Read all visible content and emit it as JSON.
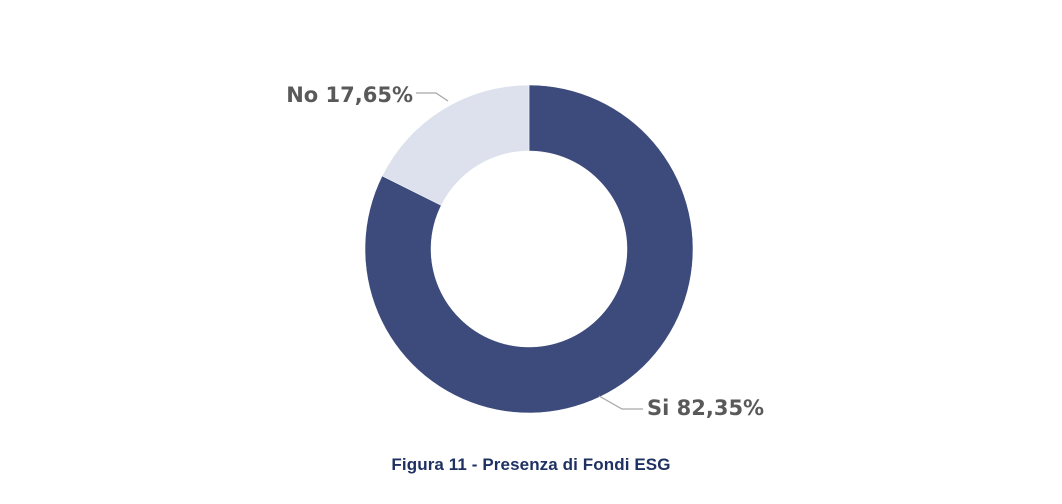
{
  "chart_data": {
    "type": "pie",
    "donut": true,
    "categories": [
      "Si",
      "No"
    ],
    "values": [
      82.35,
      17.65
    ],
    "data_labels": [
      "Si 82,35%",
      "No 17,65%"
    ],
    "colors": [
      "#3d4b7c",
      "#dce1ed"
    ],
    "legend": "none"
  },
  "caption": "Figura 11 - Presenza di Fondi ESG"
}
